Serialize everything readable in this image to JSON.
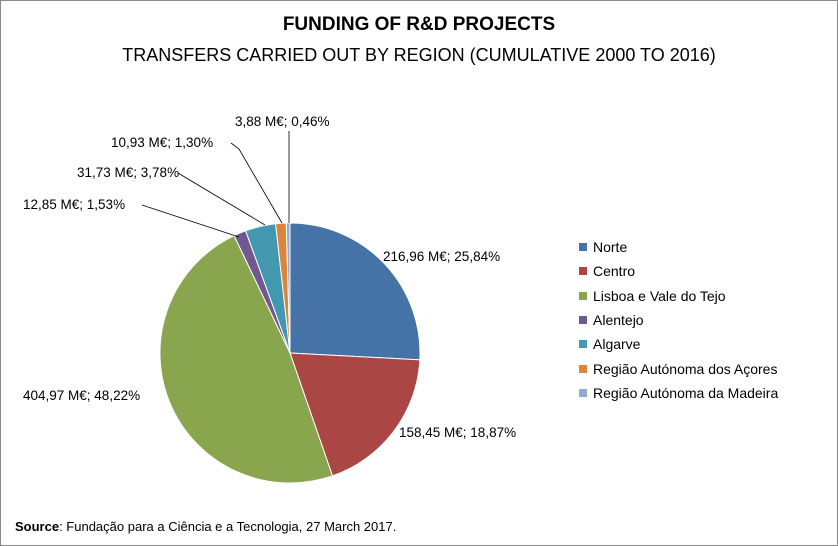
{
  "chart_data": {
    "type": "pie",
    "title": "FUNDING OF R&D PROJECTS",
    "subtitle": "TRANSFERS CARRIED OUT BY REGION (CUMULATIVE  2000 TO 2016)",
    "legend_position": "right",
    "slices": [
      {
        "name": "Norte",
        "value": 216.96,
        "percent": 25.84,
        "label": "216,96 M€; 25,84%",
        "color": "#4572A7"
      },
      {
        "name": "Centro",
        "value": 158.45,
        "percent": 18.87,
        "label": "158,45 M€; 18,87%",
        "color": "#AA4643"
      },
      {
        "name": "Lisboa e Vale do Tejo",
        "value": 404.97,
        "percent": 48.22,
        "label": "404,97 M€; 48,22%",
        "color": "#89A54E"
      },
      {
        "name": "Alentejo",
        "value": 12.85,
        "percent": 1.53,
        "label": "12,85 M€; 1,53%",
        "color": "#71588F"
      },
      {
        "name": "Algarve",
        "value": 31.73,
        "percent": 3.78,
        "label": "31,73 M€; 3,78%",
        "color": "#4198AF"
      },
      {
        "name": "Região Autónoma dos Açores",
        "value": 10.93,
        "percent": 1.3,
        "label": "10,93 M€; 1,30%",
        "color": "#DB843D"
      },
      {
        "name": "Região Autónoma da Madeira",
        "value": 3.88,
        "percent": 0.46,
        "label": "3,88 M€; 0,46%",
        "color": "#93A9CF"
      }
    ]
  },
  "source": {
    "prefix": "Source",
    "text": ": Fundação para a Ciência e a Tecnologia, 27 March 2017."
  }
}
